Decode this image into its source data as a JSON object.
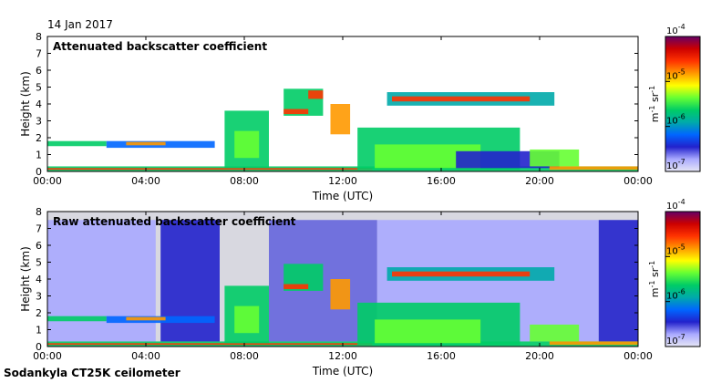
{
  "date": "14 Jan 2017",
  "caption": "Sodankyla CT25K ceilometer",
  "colorbar": {
    "ticks": [
      {
        "base": "10",
        "exp": "-4"
      },
      {
        "base": "10",
        "exp": "-5"
      },
      {
        "base": "10",
        "exp": "-6"
      },
      {
        "base": "10",
        "exp": "-7"
      }
    ],
    "unit_m": "m",
    "unit_m_exp": "-1",
    "unit_sr": "sr",
    "unit_sr_exp": "-1",
    "colors": [
      "#660066",
      "#cc0000",
      "#ff3300",
      "#ff9900",
      "#ffff00",
      "#66ff33",
      "#00cc66",
      "#00aaaa",
      "#0066ff",
      "#2222cc",
      "#aaaaff",
      "#e6e6f5"
    ]
  },
  "chart_data": [
    {
      "type": "heatmap",
      "title": "Attenuated backscatter coefficient",
      "xlabel": "Time (UTC)",
      "ylabel": "Height (km)",
      "xticks": [
        "00:00",
        "04:00",
        "08:00",
        "12:00",
        "16:00",
        "20:00",
        "00:00"
      ],
      "yticks": [
        "0",
        "1",
        "2",
        "3",
        "4",
        "5",
        "6",
        "7",
        "8"
      ],
      "xlim": [
        0,
        24
      ],
      "ylim": [
        0,
        8
      ],
      "background": "#ffffff",
      "features": [
        {
          "name": "surface-layer",
          "kind": "band",
          "t": [
            0,
            24
          ],
          "h": [
            0,
            0.3
          ],
          "color": "#00cc66"
        },
        {
          "name": "surface-strong",
          "kind": "band",
          "t": [
            0,
            13.2
          ],
          "h": [
            0.1,
            0.2
          ],
          "color": "#ff3300"
        },
        {
          "name": "low-cloud-a",
          "kind": "band",
          "t": [
            0,
            2.4
          ],
          "h": [
            1.5,
            1.8
          ],
          "color": "#00cc66"
        },
        {
          "name": "low-cloud-b",
          "kind": "band",
          "t": [
            2.4,
            6.8
          ],
          "h": [
            1.4,
            1.8
          ],
          "color": "#0066ff"
        },
        {
          "name": "low-cloud-core",
          "kind": "band",
          "t": [
            3.2,
            4.8
          ],
          "h": [
            1.55,
            1.75
          ],
          "color": "#ff9900"
        },
        {
          "name": "cloud-0730",
          "kind": "band",
          "t": [
            7.2,
            9.0
          ],
          "h": [
            0.2,
            3.6
          ],
          "color": "#00cc66"
        },
        {
          "name": "cloud-0730-core",
          "kind": "band",
          "t": [
            7.6,
            8.6
          ],
          "h": [
            0.8,
            2.4
          ],
          "color": "#66ff33"
        },
        {
          "name": "mid-cloud-1000",
          "kind": "band",
          "t": [
            9.6,
            11.2
          ],
          "h": [
            3.3,
            4.9
          ],
          "color": "#00cc66"
        },
        {
          "name": "mid-cloud-1000-base",
          "kind": "band",
          "t": [
            9.6,
            10.6
          ],
          "h": [
            3.4,
            3.7
          ],
          "color": "#ff3300"
        },
        {
          "name": "mid-cloud-1100-core",
          "kind": "band",
          "t": [
            10.6,
            11.2
          ],
          "h": [
            4.3,
            4.8
          ],
          "color": "#ff3300"
        },
        {
          "name": "tilted-cloud-1130",
          "kind": "band",
          "t": [
            11.5,
            12.3
          ],
          "h": [
            2.2,
            4.0
          ],
          "color": "#ff9900"
        },
        {
          "name": "precip-1200-1900",
          "kind": "band",
          "t": [
            12.6,
            19.2
          ],
          "h": [
            0.1,
            2.6
          ],
          "color": "#00cc66"
        },
        {
          "name": "precip-core",
          "kind": "band",
          "t": [
            13.3,
            17.6
          ],
          "h": [
            0.2,
            1.6
          ],
          "color": "#66ff33"
        },
        {
          "name": "noise-base-1600",
          "kind": "band",
          "t": [
            16.6,
            20.8
          ],
          "h": [
            0.2,
            1.2
          ],
          "color": "#2222cc"
        },
        {
          "name": "upper-layer-1400-2030",
          "kind": "band",
          "t": [
            13.8,
            20.6
          ],
          "h": [
            3.9,
            4.7
          ],
          "color": "#00aaaa"
        },
        {
          "name": "upper-layer-core",
          "kind": "band",
          "t": [
            14.0,
            19.6
          ],
          "h": [
            4.15,
            4.45
          ],
          "color": "#ff3300"
        },
        {
          "name": "late-cloud-2000",
          "kind": "band",
          "t": [
            19.6,
            21.6
          ],
          "h": [
            0.3,
            1.3
          ],
          "color": "#66ff33"
        },
        {
          "name": "late-surface-2100",
          "kind": "band",
          "t": [
            20.4,
            24.0
          ],
          "h": [
            0.1,
            0.3
          ],
          "color": "#ff9900"
        }
      ]
    },
    {
      "type": "heatmap",
      "title": "Raw attenuated backscatter coefficient",
      "xlabel": "Time (UTC)",
      "ylabel": "Height (km)",
      "xticks": [
        "00:00",
        "04:00",
        "08:00",
        "12:00",
        "16:00",
        "20:00",
        "00:00"
      ],
      "yticks": [
        "0",
        "1",
        "2",
        "3",
        "4",
        "5",
        "6",
        "7",
        "8"
      ],
      "xlim": [
        0,
        24
      ],
      "ylim": [
        0,
        8
      ],
      "background": "#d8d8e0",
      "features": [
        {
          "name": "noise-0000-0400",
          "kind": "band",
          "t": [
            0,
            4.4
          ],
          "h": [
            0.3,
            7.5
          ],
          "color": "#aaaaff"
        },
        {
          "name": "noise-dense-0430",
          "kind": "band",
          "t": [
            4.6,
            7.0
          ],
          "h": [
            0.3,
            7.5
          ],
          "color": "#2222cc"
        },
        {
          "name": "noise-0900-1300",
          "kind": "band",
          "t": [
            9.0,
            13.4
          ],
          "h": [
            0.3,
            7.5
          ],
          "color": "#6666dd"
        },
        {
          "name": "noise-1300-2200",
          "kind": "band",
          "t": [
            13.4,
            22.4
          ],
          "h": [
            0.3,
            7.5
          ],
          "color": "#aaaaff"
        },
        {
          "name": "noise-dense-2230",
          "kind": "band",
          "t": [
            22.4,
            24.0
          ],
          "h": [
            0.3,
            7.5
          ],
          "color": "#2222cc"
        },
        {
          "name": "surface-layer",
          "kind": "band",
          "t": [
            0,
            24
          ],
          "h": [
            0,
            0.3
          ],
          "color": "#00cc66"
        },
        {
          "name": "surface-strong",
          "kind": "band",
          "t": [
            0,
            13.2
          ],
          "h": [
            0.1,
            0.2
          ],
          "color": "#ff3300"
        },
        {
          "name": "low-cloud-a",
          "kind": "band",
          "t": [
            0,
            2.4
          ],
          "h": [
            1.5,
            1.8
          ],
          "color": "#00cc66"
        },
        {
          "name": "low-cloud-b",
          "kind": "band",
          "t": [
            2.4,
            6.8
          ],
          "h": [
            1.4,
            1.8
          ],
          "color": "#0066ff"
        },
        {
          "name": "low-cloud-core",
          "kind": "band",
          "t": [
            3.2,
            4.8
          ],
          "h": [
            1.55,
            1.75
          ],
          "color": "#ff9900"
        },
        {
          "name": "cloud-0730",
          "kind": "band",
          "t": [
            7.2,
            9.0
          ],
          "h": [
            0.2,
            3.6
          ],
          "color": "#00cc66"
        },
        {
          "name": "cloud-0730-core",
          "kind": "band",
          "t": [
            7.6,
            8.6
          ],
          "h": [
            0.8,
            2.4
          ],
          "color": "#66ff33"
        },
        {
          "name": "mid-cloud-1000",
          "kind": "band",
          "t": [
            9.6,
            11.2
          ],
          "h": [
            3.3,
            4.9
          ],
          "color": "#00cc66"
        },
        {
          "name": "mid-cloud-1000-base",
          "kind": "band",
          "t": [
            9.6,
            10.6
          ],
          "h": [
            3.4,
            3.7
          ],
          "color": "#ff3300"
        },
        {
          "name": "tilted-cloud-1130",
          "kind": "band",
          "t": [
            11.5,
            12.3
          ],
          "h": [
            2.2,
            4.0
          ],
          "color": "#ff9900"
        },
        {
          "name": "precip-1200-1900",
          "kind": "band",
          "t": [
            12.6,
            19.2
          ],
          "h": [
            0.1,
            2.6
          ],
          "color": "#00cc66"
        },
        {
          "name": "precip-core",
          "kind": "band",
          "t": [
            13.3,
            17.6
          ],
          "h": [
            0.2,
            1.6
          ],
          "color": "#66ff33"
        },
        {
          "name": "upper-layer-1400-2030",
          "kind": "band",
          "t": [
            13.8,
            20.6
          ],
          "h": [
            3.9,
            4.7
          ],
          "color": "#00aaaa"
        },
        {
          "name": "upper-layer-core",
          "kind": "band",
          "t": [
            14.0,
            19.6
          ],
          "h": [
            4.15,
            4.45
          ],
          "color": "#ff3300"
        },
        {
          "name": "late-cloud-2000",
          "kind": "band",
          "t": [
            19.6,
            21.6
          ],
          "h": [
            0.3,
            1.3
          ],
          "color": "#66ff33"
        },
        {
          "name": "late-surface-2100",
          "kind": "band",
          "t": [
            20.4,
            24.0
          ],
          "h": [
            0.1,
            0.3
          ],
          "color": "#ff9900"
        }
      ]
    }
  ]
}
